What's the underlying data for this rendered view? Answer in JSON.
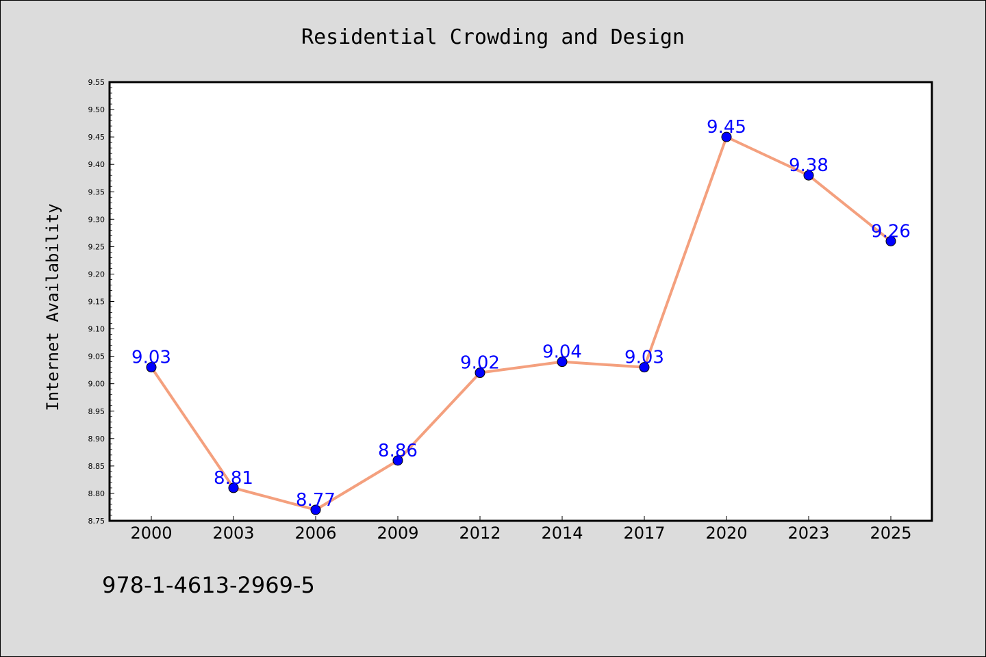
{
  "colors": {
    "background": "#dcdcdc",
    "plot_background": "#ffffff",
    "line": "#f4a07e",
    "marker": "#0000ff",
    "data_label": "#0000ff"
  },
  "annotation": "978-1-4613-2969-5",
  "chart_data": {
    "type": "line",
    "title": "Residential Crowding and Design",
    "xlabel": "",
    "ylabel": "Internet Availability",
    "categories": [
      "2000",
      "2003",
      "2006",
      "2009",
      "2012",
      "2014",
      "2017",
      "2020",
      "2023",
      "2025"
    ],
    "series": [
      {
        "values": [
          9.03,
          8.81,
          8.77,
          8.86,
          9.02,
          9.04,
          9.03,
          9.45,
          9.38,
          9.26
        ],
        "labels": [
          "9.03",
          "8.81",
          "8.77",
          "8.86",
          "9.02",
          "9.04",
          "9.03",
          "9.45",
          "9.38",
          "9.26"
        ]
      }
    ],
    "ylim": [
      8.75,
      9.55
    ],
    "yticks": [
      "8.75",
      "8.80",
      "8.85",
      "8.90",
      "8.95",
      "9.00",
      "9.05",
      "9.10",
      "9.15",
      "9.20",
      "9.25",
      "9.30",
      "9.35",
      "9.40",
      "9.45",
      "9.50",
      "9.55"
    ],
    "grid": false,
    "legend": "none",
    "markers": "circle"
  }
}
